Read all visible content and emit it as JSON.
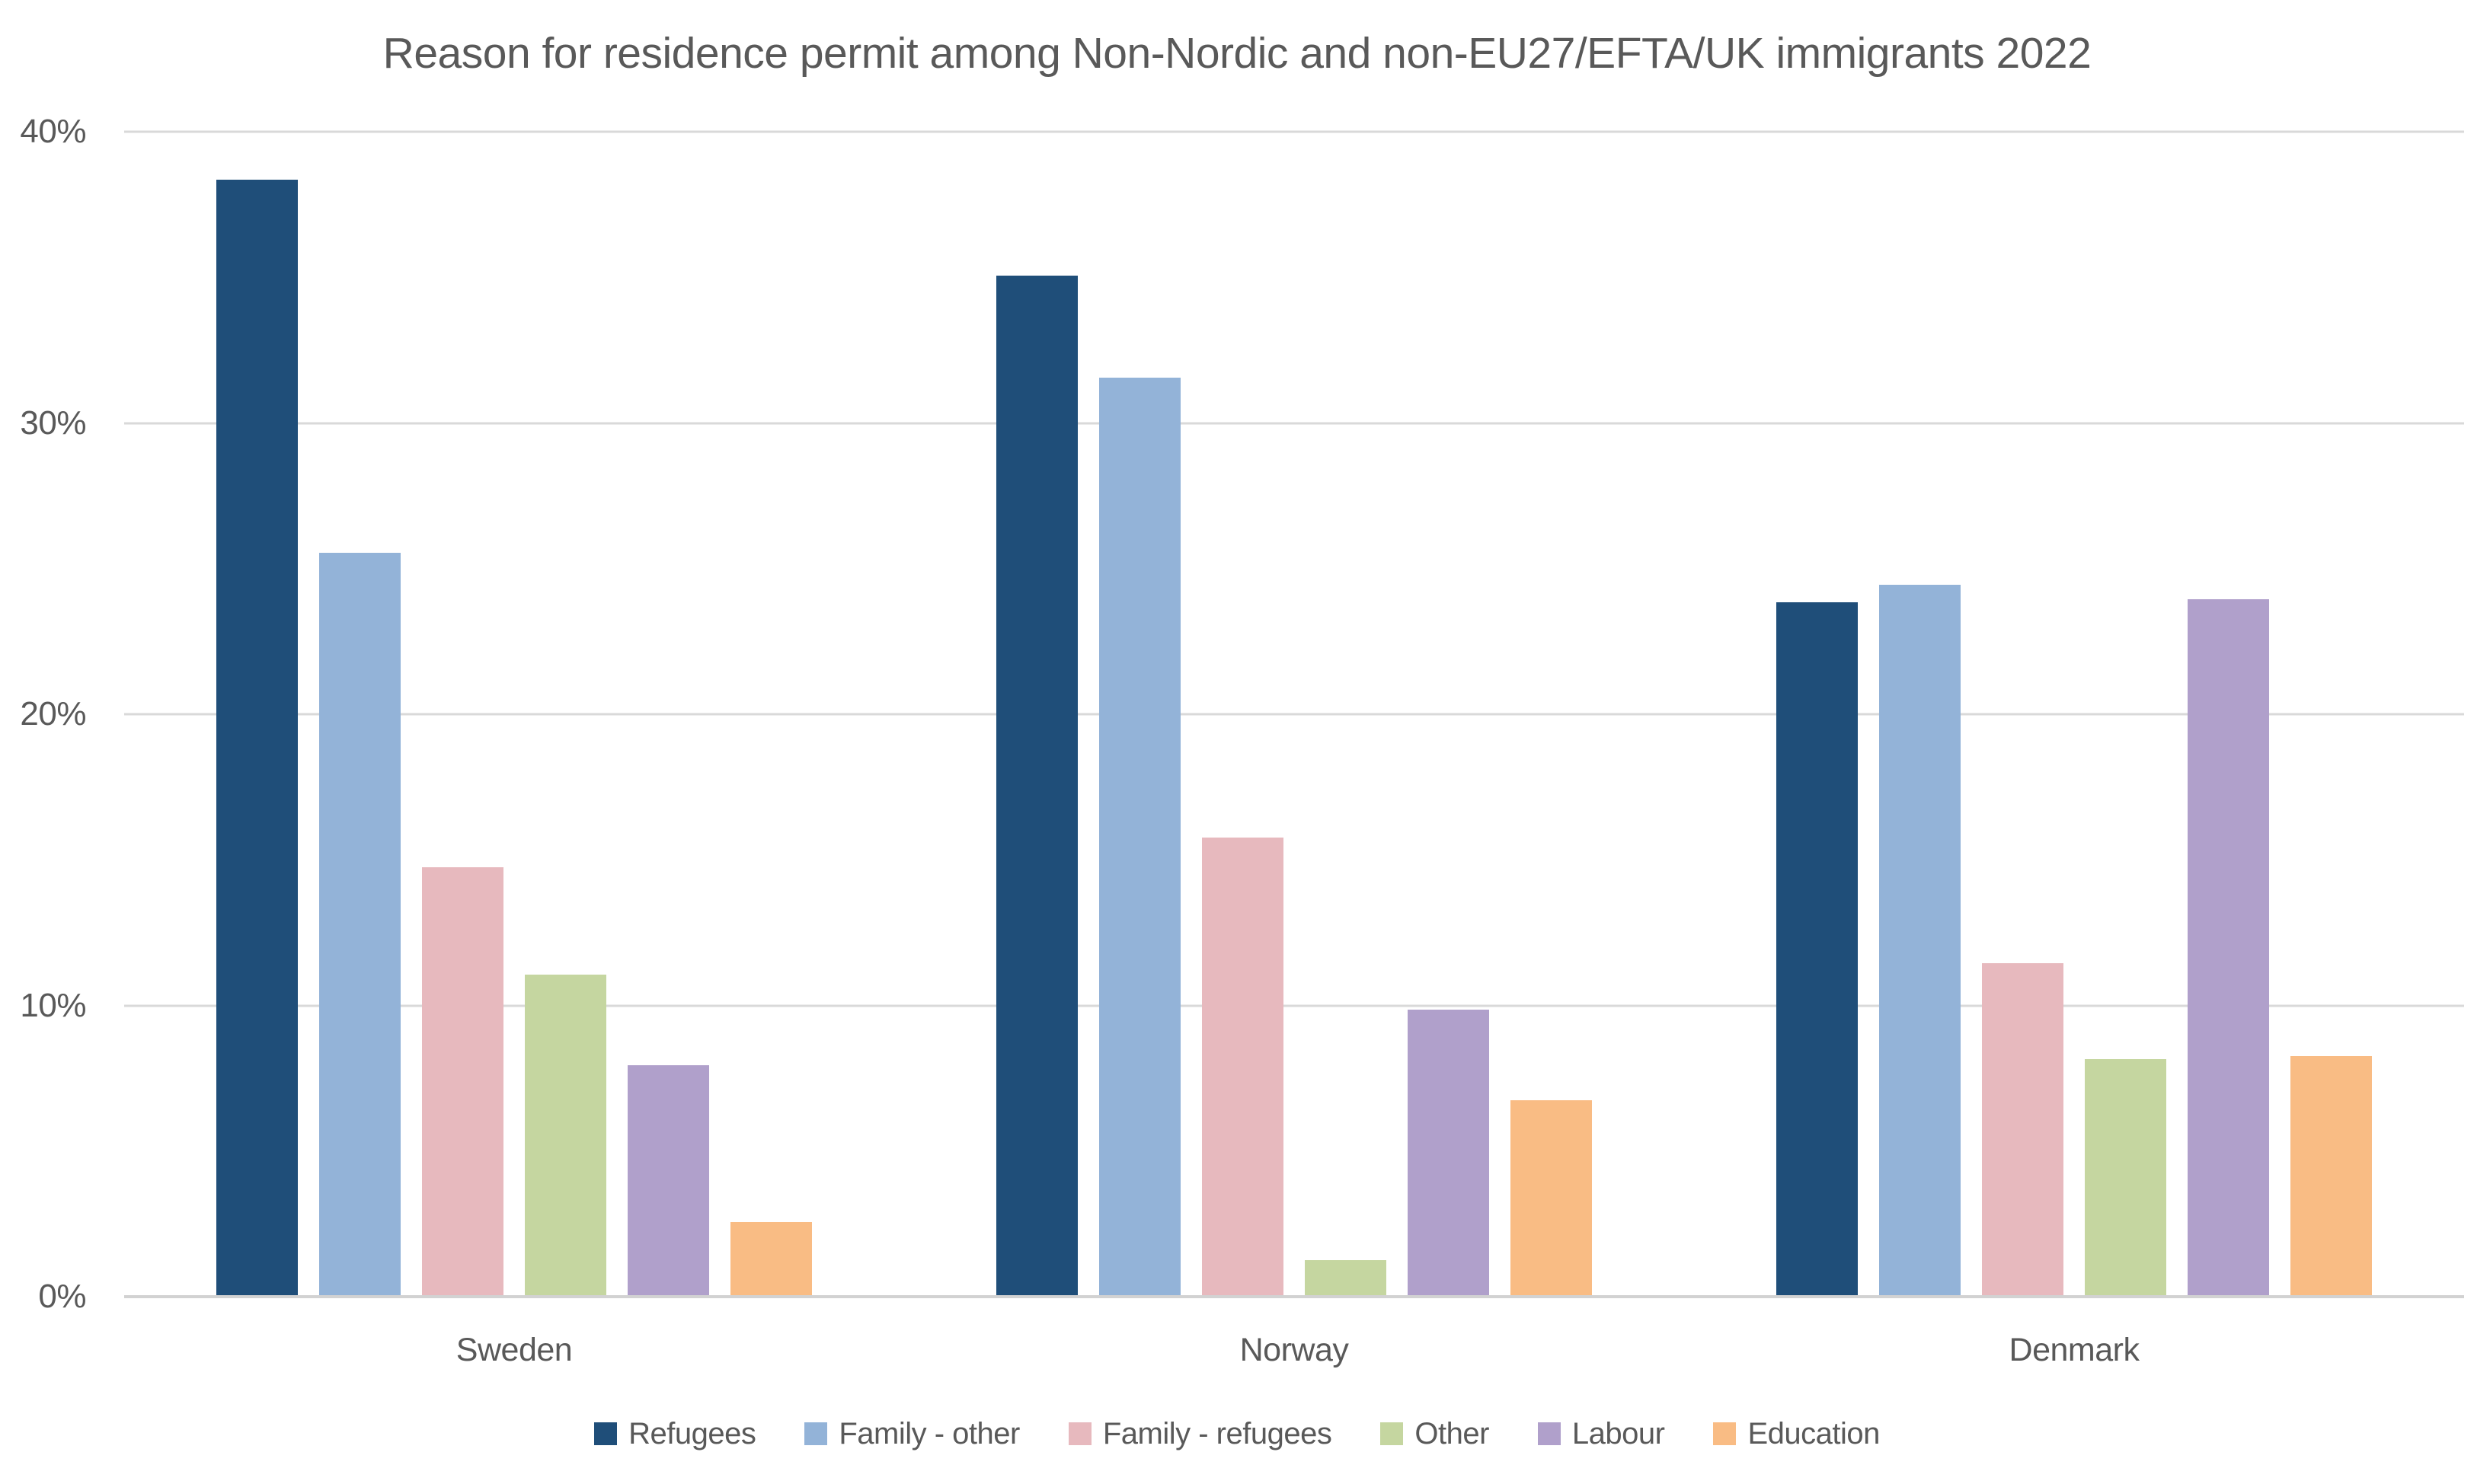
{
  "chart_data": {
    "type": "bar",
    "title": "Reason for residence permit among Non-Nordic and non-EU27/EFTA/UK immigrants 2022",
    "categories": [
      "Sweden",
      "Norway",
      "Denmark"
    ],
    "series": [
      {
        "name": "Refugees",
        "color": "#1F4E79",
        "values": [
          38.3,
          35.0,
          23.8
        ]
      },
      {
        "name": "Family - other",
        "color": "#93B3D8",
        "values": [
          25.5,
          31.5,
          24.4
        ]
      },
      {
        "name": "Family - refugees",
        "color": "#E7B9BE",
        "values": [
          14.7,
          15.7,
          11.4
        ]
      },
      {
        "name": "Other",
        "color": "#C5D6A0",
        "values": [
          11.0,
          1.2,
          8.1
        ]
      },
      {
        "name": "Labour",
        "color": "#B0A0CB",
        "values": [
          7.9,
          9.8,
          23.9
        ]
      },
      {
        "name": "Education",
        "color": "#F9BC84",
        "values": [
          2.5,
          6.7,
          8.2
        ]
      }
    ],
    "xlabel": "",
    "ylabel": "",
    "ylim": [
      0,
      40
    ],
    "yticks": [
      {
        "value": 40,
        "label": "40%"
      },
      {
        "value": 30,
        "label": "30%"
      },
      {
        "value": 20,
        "label": "20%"
      },
      {
        "value": 10,
        "label": "10%"
      },
      {
        "value": 0,
        "label": "0%"
      }
    ],
    "grid": true,
    "legend_position": "bottom"
  },
  "theme": {
    "background": "#FFFFFF",
    "text_color": "#595959",
    "gridline_color": "#D9D9D9",
    "baseline_color": "#D2D2D2"
  }
}
